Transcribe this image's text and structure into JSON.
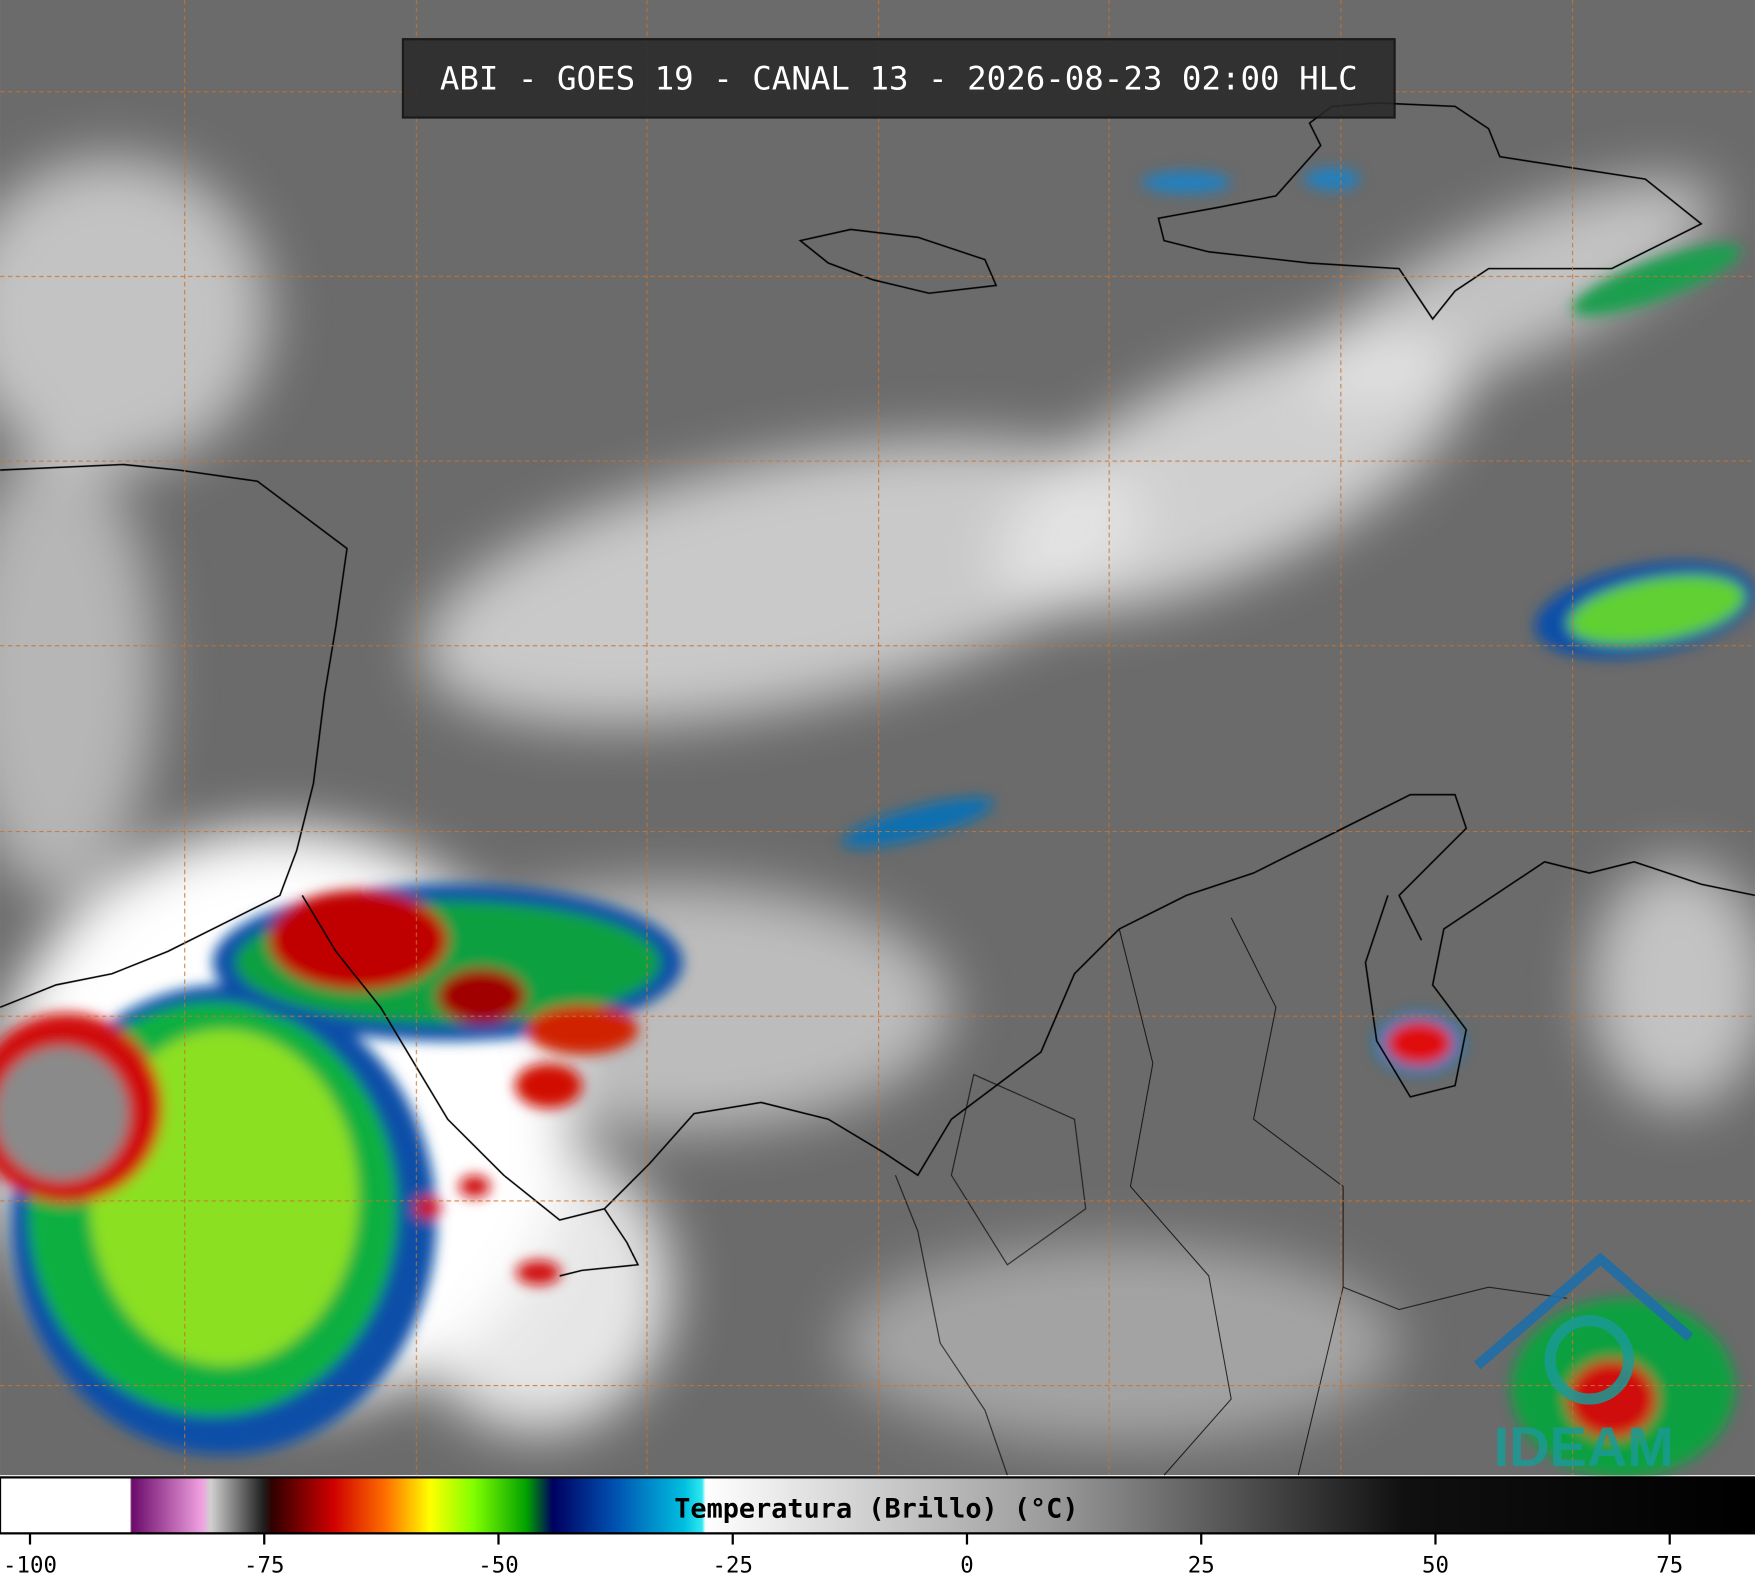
{
  "title": "ABI - GOES 19 - CANAL 13 - 2026-08-23 02:00 HLC",
  "colorbar": {
    "label": "Temperatura (Brillo) (°C)",
    "xlim": [
      -103.2,
      84.1
    ],
    "xticks": [
      -100,
      -75,
      -50,
      -25,
      0,
      25,
      50,
      75
    ]
  },
  "logo": "IDEAM"
}
